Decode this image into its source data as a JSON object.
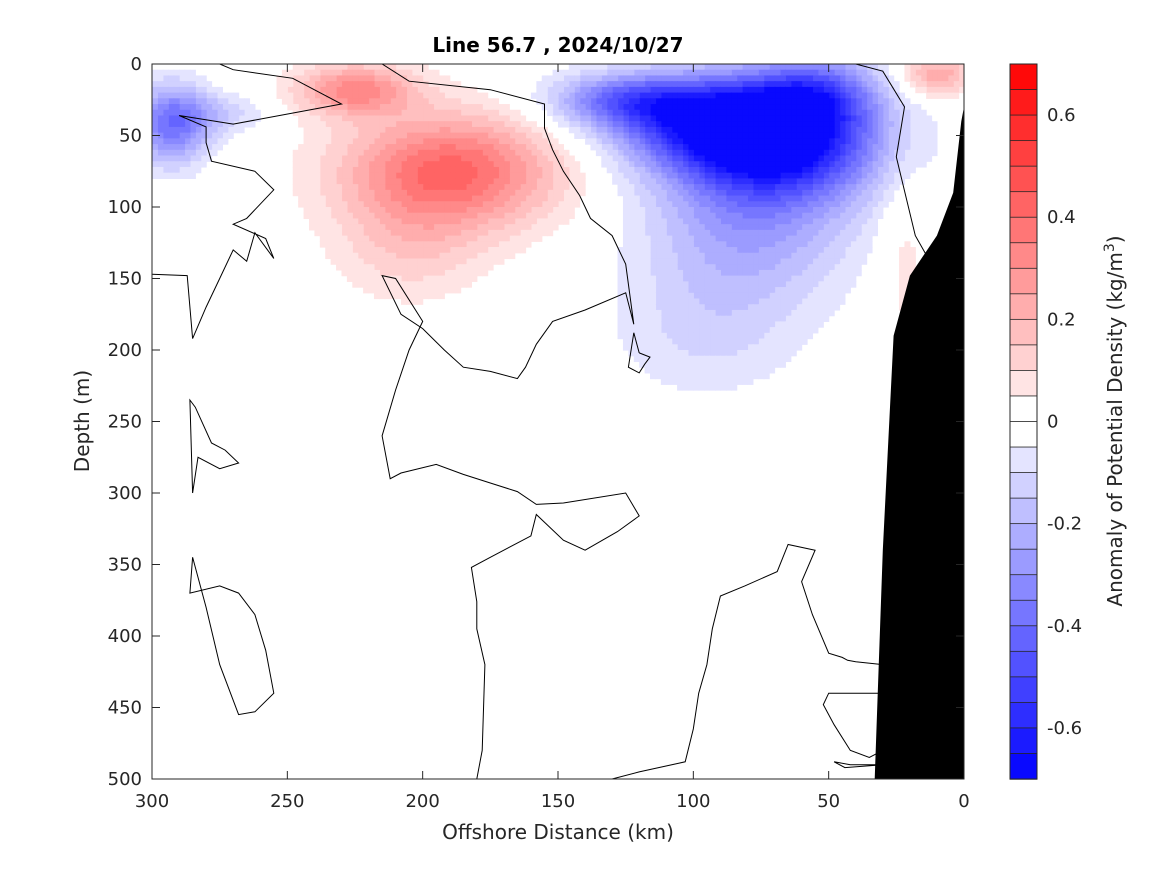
{
  "chart_data": {
    "type": "heatmap",
    "title": "Line 56.7 , 2024/10/27",
    "xlabel": "Offshore Distance (km)",
    "ylabel": "Depth (m)",
    "colorbar_label": "Anomaly of Potential Density (kg/m",
    "colorbar_label_sup": "3",
    "colorbar_label_end": ")",
    "xlim": [
      300,
      0
    ],
    "ylim": [
      0,
      500
    ],
    "clim": [
      -0.7,
      0.7
    ],
    "x_ticks": [
      300,
      250,
      200,
      150,
      100,
      50,
      0
    ],
    "y_ticks": [
      0,
      50,
      100,
      150,
      200,
      250,
      300,
      350,
      400,
      450,
      500
    ],
    "colorbar_ticks": [
      0.6,
      0.4,
      0.2,
      0,
      -0.2,
      -0.4,
      -0.6
    ],
    "colorbar_levels": 28,
    "colormap": {
      "low": "#0000ff",
      "mid": "#ffffff",
      "high": "#ff0000"
    },
    "blobs": [
      {
        "x": 70,
        "y": 55,
        "value": -0.68,
        "rx": 38,
        "ry": 42
      },
      {
        "x": 95,
        "y": 40,
        "value": -0.42,
        "rx": 38,
        "ry": 30
      },
      {
        "x": 125,
        "y": 25,
        "value": -0.32,
        "rx": 28,
        "ry": 18
      },
      {
        "x": 80,
        "y": 120,
        "value": -0.22,
        "rx": 38,
        "ry": 50
      },
      {
        "x": 95,
        "y": 190,
        "value": -0.1,
        "rx": 35,
        "ry": 45
      },
      {
        "x": 55,
        "y": 20,
        "value": -0.3,
        "rx": 22,
        "ry": 25
      },
      {
        "x": 293,
        "y": 42,
        "value": -0.38,
        "rx": 14,
        "ry": 28
      },
      {
        "x": 275,
        "y": 35,
        "value": -0.12,
        "rx": 18,
        "ry": 14
      },
      {
        "x": 190,
        "y": 75,
        "value": 0.42,
        "rx": 40,
        "ry": 40
      },
      {
        "x": 225,
        "y": 18,
        "value": 0.32,
        "rx": 22,
        "ry": 18
      },
      {
        "x": 205,
        "y": 130,
        "value": 0.12,
        "rx": 28,
        "ry": 38
      },
      {
        "x": 10,
        "y": 8,
        "value": 0.25,
        "rx": 13,
        "ry": 15
      },
      {
        "x": 22,
        "y": 130,
        "value": 0.08,
        "rx": 10,
        "ry": 80
      }
    ],
    "topography": [
      [
        33,
        500
      ],
      [
        30,
        340
      ],
      [
        26,
        190
      ],
      [
        20,
        148
      ],
      [
        10,
        120
      ],
      [
        4,
        90
      ],
      [
        1,
        40
      ],
      [
        0,
        30
      ],
      [
        0,
        500
      ]
    ],
    "zero_contours": [
      [
        [
          300,
          147
        ],
        [
          287,
          148
        ],
        [
          285,
          192
        ],
        [
          280,
          170
        ],
        [
          275,
          150
        ],
        [
          270,
          130
        ],
        [
          265,
          138
        ],
        [
          262,
          118
        ],
        [
          255,
          136
        ],
        [
          258,
          122
        ],
        [
          270,
          112
        ],
        [
          265,
          108
        ],
        [
          255,
          88
        ],
        [
          262,
          75
        ],
        [
          278,
          68
        ],
        [
          280,
          55
        ],
        [
          280,
          44
        ],
        [
          290,
          36
        ],
        [
          270,
          42
        ],
        [
          230,
          28
        ],
        [
          248,
          10
        ],
        [
          270,
          4
        ],
        [
          275,
          0
        ]
      ],
      [
        [
          215,
          0
        ],
        [
          205,
          12
        ],
        [
          175,
          18
        ],
        [
          155,
          28
        ],
        [
          155,
          45
        ],
        [
          152,
          60
        ],
        [
          148,
          75
        ],
        [
          142,
          92
        ],
        [
          138,
          108
        ],
        [
          130,
          120
        ],
        [
          125,
          140
        ],
        [
          122,
          182
        ],
        [
          125,
          160
        ],
        [
          140,
          172
        ],
        [
          152,
          180
        ],
        [
          158,
          196
        ],
        [
          162,
          212
        ],
        [
          165,
          220
        ],
        [
          175,
          215
        ],
        [
          185,
          212
        ],
        [
          192,
          200
        ],
        [
          200,
          185
        ],
        [
          208,
          175
        ],
        [
          215,
          148
        ],
        [
          210,
          150
        ],
        [
          200,
          180
        ],
        [
          205,
          200
        ],
        [
          210,
          228
        ],
        [
          215,
          260
        ],
        [
          212,
          290
        ],
        [
          208,
          286
        ],
        [
          195,
          280
        ],
        [
          185,
          287
        ],
        [
          175,
          293
        ],
        [
          165,
          299
        ],
        [
          158,
          308
        ],
        [
          148,
          307
        ],
        [
          125,
          300
        ],
        [
          120,
          316
        ],
        [
          128,
          327
        ],
        [
          140,
          340
        ],
        [
          148,
          333
        ],
        [
          158,
          315
        ],
        [
          160,
          330
        ],
        [
          175,
          345
        ],
        [
          182,
          352
        ],
        [
          180,
          376
        ],
        [
          180,
          395
        ],
        [
          177,
          420
        ],
        [
          178,
          480
        ],
        [
          180,
          500
        ]
      ],
      [
        [
          120,
          202
        ],
        [
          122,
          188
        ],
        [
          124,
          212
        ],
        [
          120,
          216
        ],
        [
          118,
          210
        ],
        [
          116,
          205
        ],
        [
          120,
          202
        ]
      ],
      [
        [
          130,
          500
        ],
        [
          120,
          495
        ],
        [
          103,
          488
        ],
        [
          100,
          465
        ],
        [
          98,
          440
        ],
        [
          95,
          420
        ],
        [
          93,
          395
        ],
        [
          90,
          372
        ],
        [
          81,
          365
        ],
        [
          69,
          355
        ],
        [
          65,
          336
        ],
        [
          55,
          340
        ],
        [
          60,
          362
        ],
        [
          56,
          385
        ],
        [
          50,
          412
        ],
        [
          45,
          415
        ],
        [
          43,
          417
        ],
        [
          40,
          418
        ],
        [
          30,
          420
        ]
      ],
      [
        [
          55,
          0
        ],
        [
          40,
          0
        ],
        [
          30,
          5
        ],
        [
          22,
          30
        ],
        [
          25,
          65
        ],
        [
          18,
          120
        ],
        [
          12,
          140
        ],
        [
          8,
          180
        ],
        [
          9,
          210
        ],
        [
          7,
          230
        ],
        [
          5,
          240
        ],
        [
          6,
          250
        ],
        [
          7,
          270
        ],
        [
          12,
          290
        ],
        [
          28,
          310
        ],
        [
          30,
          360
        ]
      ],
      [
        [
          285,
          300
        ],
        [
          283,
          275
        ],
        [
          275,
          283
        ],
        [
          268,
          279
        ],
        [
          273,
          270
        ],
        [
          278,
          265
        ],
        [
          284,
          240
        ],
        [
          286,
          235
        ],
        [
          285,
          300
        ]
      ],
      [
        [
          285,
          345
        ],
        [
          286,
          370
        ],
        [
          275,
          365
        ],
        [
          268,
          370
        ],
        [
          262,
          385
        ],
        [
          258,
          410
        ],
        [
          255,
          440
        ],
        [
          262,
          453
        ],
        [
          268,
          455
        ],
        [
          275,
          420
        ],
        [
          280,
          380
        ],
        [
          285,
          345
        ]
      ],
      [
        [
          30,
          440
        ],
        [
          50,
          440
        ],
        [
          52,
          448
        ],
        [
          48,
          462
        ],
        [
          42,
          480
        ],
        [
          35,
          485
        ],
        [
          30,
          480
        ]
      ],
      [
        [
          30,
          490
        ],
        [
          42,
          490
        ],
        [
          48,
          488
        ],
        [
          44,
          492
        ],
        [
          30,
          490
        ]
      ]
    ]
  }
}
